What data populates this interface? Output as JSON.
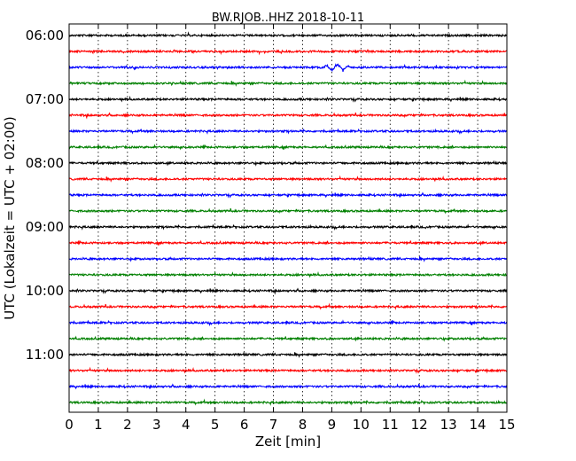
{
  "chart_data": {
    "type": "line",
    "title": "BW.RJOB..HHZ 2018-10-11",
    "xlabel": "Zeit  [min]",
    "ylabel": "UTC (Lokalzeit = UTC + 02:00)",
    "xlim": [
      0,
      15
    ],
    "xticks": [
      "0",
      "1",
      "2",
      "3",
      "4",
      "5",
      "6",
      "7",
      "8",
      "9",
      "10",
      "11",
      "12",
      "13",
      "14",
      "15"
    ],
    "yticks": [
      {
        "label": "06:00",
        "row": 0
      },
      {
        "label": "07:00",
        "row": 4
      },
      {
        "label": "08:00",
        "row": 8
      },
      {
        "label": "09:00",
        "row": 12
      },
      {
        "label": "10:00",
        "row": 16
      },
      {
        "label": "11:00",
        "row": 20
      }
    ],
    "grid": {
      "x": true,
      "y": false
    },
    "trace_colors": [
      "#000000",
      "#ff0000",
      "#0000ff",
      "#008000"
    ],
    "traces": [
      {
        "start": "06:00",
        "color": "#000000"
      },
      {
        "start": "06:15",
        "color": "#ff0000"
      },
      {
        "start": "06:30",
        "color": "#0000ff"
      },
      {
        "start": "06:45",
        "color": "#008000"
      },
      {
        "start": "07:00",
        "color": "#000000"
      },
      {
        "start": "07:15",
        "color": "#ff0000"
      },
      {
        "start": "07:30",
        "color": "#0000ff"
      },
      {
        "start": "07:45",
        "color": "#008000"
      },
      {
        "start": "08:00",
        "color": "#000000"
      },
      {
        "start": "08:15",
        "color": "#ff0000"
      },
      {
        "start": "08:30",
        "color": "#0000ff"
      },
      {
        "start": "08:45",
        "color": "#008000"
      },
      {
        "start": "09:00",
        "color": "#000000"
      },
      {
        "start": "09:15",
        "color": "#ff0000"
      },
      {
        "start": "09:30",
        "color": "#0000ff"
      },
      {
        "start": "09:45",
        "color": "#008000"
      },
      {
        "start": "10:00",
        "color": "#000000"
      },
      {
        "start": "10:15",
        "color": "#ff0000"
      },
      {
        "start": "10:30",
        "color": "#0000ff"
      },
      {
        "start": "10:45",
        "color": "#008000"
      },
      {
        "start": "11:00",
        "color": "#000000"
      },
      {
        "start": "11:15",
        "color": "#ff0000"
      },
      {
        "start": "11:30",
        "color": "#0000ff"
      },
      {
        "start": "11:45",
        "color": "#008000"
      }
    ],
    "annotations": [
      {
        "trace": 2,
        "x_min": 8.5,
        "note": "wave packet"
      }
    ]
  }
}
